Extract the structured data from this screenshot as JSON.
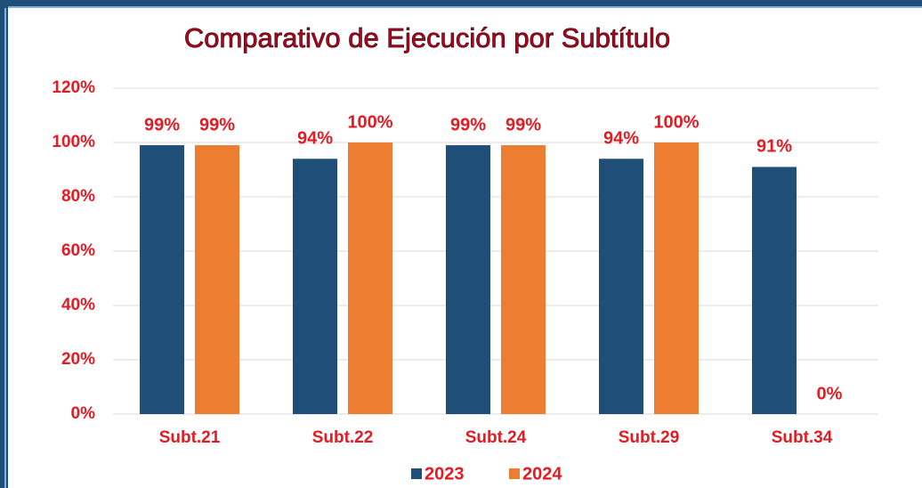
{
  "chart_data": {
    "type": "bar",
    "title": "Comparativo de Ejecución por Subtítulo",
    "categories": [
      "Subt.21",
      "Subt.22",
      "Subt.24",
      "Subt.29",
      "Subt.34"
    ],
    "series": [
      {
        "name": "2023",
        "color": "#1f4e79",
        "values": [
          99,
          94,
          99,
          94,
          91
        ],
        "value_labels": [
          "99%",
          "94%",
          "99%",
          "94%",
          "91%"
        ]
      },
      {
        "name": "2024",
        "color": "#ed7d31",
        "values": [
          99,
          100,
          99,
          100,
          0
        ],
        "value_labels": [
          "99%",
          "100%",
          "99%",
          "100%",
          "0%"
        ]
      }
    ],
    "ylim": [
      0,
      120
    ],
    "yticks": [
      {
        "value": 0,
        "label": "0%"
      },
      {
        "value": 20,
        "label": "20%"
      },
      {
        "value": 40,
        "label": "40%"
      },
      {
        "value": 60,
        "label": "60%"
      },
      {
        "value": 80,
        "label": "80%"
      },
      {
        "value": 100,
        "label": "100%"
      },
      {
        "value": 120,
        "label": "120%"
      }
    ],
    "grid": true,
    "legend": "bottom"
  }
}
